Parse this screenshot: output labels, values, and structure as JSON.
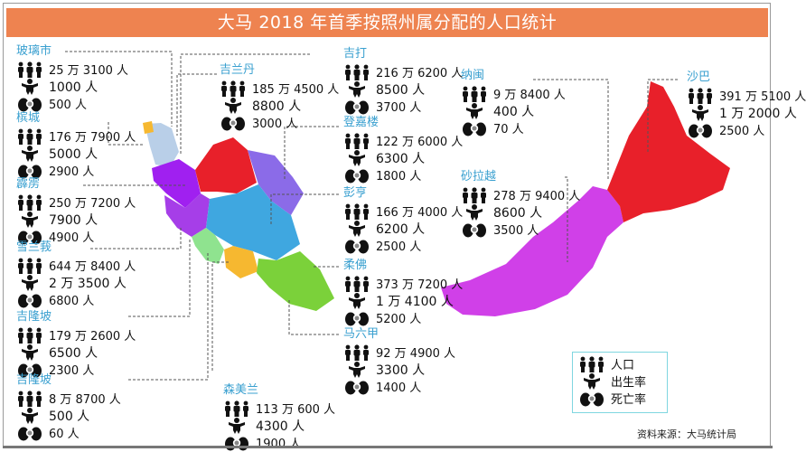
{
  "title": "大马 2018 年首季按照州属分配的人口统计",
  "colors": {
    "title_bar": "#ee8350",
    "state_name": "#3aa0d0",
    "legend_border": "#7fd6e0"
  },
  "icons": {
    "population": "people-icon",
    "births": "baby-icon",
    "deaths": "feet-icon"
  },
  "states": [
    {
      "name": "玻璃市",
      "population": "25 万 3100 人",
      "births": "1000 人",
      "deaths": "500 人",
      "color": "#b9cfe8"
    },
    {
      "name": "槟城",
      "population": "176 万 7900 人",
      "births": "5000 人",
      "deaths": "2900 人",
      "color": "#9aa6b4"
    },
    {
      "name": "霹雳",
      "population": "250 万 7200 人",
      "births": "7900 人",
      "deaths": "4900 人",
      "color": "#a63ee8"
    },
    {
      "name": "雪兰莪",
      "population": "644 万 8400 人",
      "births": "2 万 3500 人",
      "deaths": "6800 人",
      "color": "#8fe38f"
    },
    {
      "name": "吉隆坡",
      "population": "179 万 2600 人",
      "births": "6500 人",
      "deaths": "2300 人",
      "color": "#dddddd"
    },
    {
      "name": "吉隆坡",
      "population": "8 万 8700 人",
      "births": "500 人",
      "deaths": "60 人",
      "color": "#cccccc"
    },
    {
      "name": "吉兰丹",
      "population": "185 万 4500 人",
      "births": "8800 人",
      "deaths": "3000 人",
      "color": "#e8202a"
    },
    {
      "name": "吉打",
      "population": "216 万 6200 人",
      "births": "8500 人",
      "deaths": "3700 人",
      "color": "#a020f0"
    },
    {
      "name": "登嘉楼",
      "population": "122 万 6000 人",
      "births": "6300 人",
      "deaths": "1800 人",
      "color": "#8b6be8"
    },
    {
      "name": "彭亨",
      "population": "166 万 4000 人",
      "births": "6200 人",
      "deaths": "2500 人",
      "color": "#3fa7e0"
    },
    {
      "name": "柔佛",
      "population": "373 万 7200 人",
      "births": "1 万 4100 人",
      "deaths": "5200 人",
      "color": "#7bd13a"
    },
    {
      "name": "马六甲",
      "population": "92 万 4900 人",
      "births": "3300 人",
      "deaths": "1400 人",
      "color": "#f6b830"
    },
    {
      "name": "森美兰",
      "population": "113 万 600 人",
      "births": "4300 人",
      "deaths": "1900 人",
      "color": "#f6b830"
    },
    {
      "name": "纳闽",
      "population": "9 万 8400 人",
      "births": "400 人",
      "deaths": "70 人",
      "color": "#ffffff"
    },
    {
      "name": "砂拉越",
      "population": "278 万 9400 人",
      "births": "8600 人",
      "deaths": "3500 人",
      "color": "#d040e8"
    },
    {
      "name": "沙巴",
      "population": "391 万 5100 人",
      "births": "1 万 2000 人",
      "deaths": "2500 人",
      "color": "#e8202a"
    }
  ],
  "legend": {
    "population": "人口",
    "births": "出生率",
    "deaths": "死亡率"
  },
  "source": "资料来源：大马统计局"
}
